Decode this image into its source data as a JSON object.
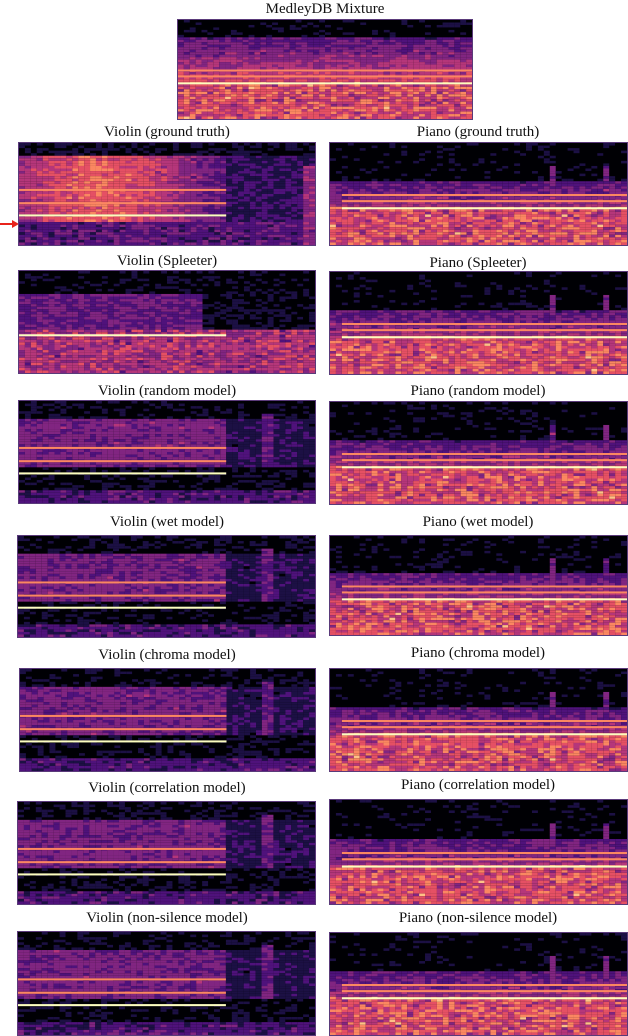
{
  "figure": {
    "mixture": {
      "title": "MedleyDB Mixture"
    },
    "colormap": [
      "#000004",
      "#1c1044",
      "#4f127b",
      "#812581",
      "#b5367a",
      "#e55064",
      "#fb8761",
      "#fec287",
      "#fcfdbf"
    ],
    "marker": {
      "type": "red-arrow",
      "color": "#e8231b",
      "points_to": "Violin (ground truth) low-frequency region"
    },
    "rows": [
      {
        "violin": "Violin (ground truth)",
        "piano": "Piano (ground truth)"
      },
      {
        "violin": "Violin (Spleeter)",
        "piano": "Piano (Spleeter)"
      },
      {
        "violin": "Violin (random model)",
        "piano": "Piano (random model)"
      },
      {
        "violin": "Violin (wet model)",
        "piano": "Piano (wet model)"
      },
      {
        "violin": "Violin (chroma model)",
        "piano": "Piano (chroma model)"
      },
      {
        "violin": "Violin (correlation model)",
        "piano": "Piano (correlation model)"
      },
      {
        "violin": "Violin (non-silence model)",
        "piano": "Piano (non-silence model)"
      }
    ]
  }
}
